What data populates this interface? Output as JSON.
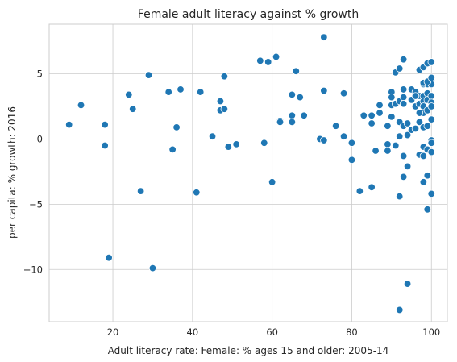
{
  "chart_data": {
    "type": "scatter",
    "title": "Female adult literacy against % growth",
    "xlabel": "Adult literacy rate: Female: % ages 15 and older: 2005-14",
    "ylabel": "per capita: % growth: 2016",
    "xlim": [
      4,
      104
    ],
    "ylim": [
      -14,
      8.8
    ],
    "xticks": [
      20,
      40,
      60,
      80,
      100
    ],
    "yticks": [
      -10,
      -5,
      0,
      5
    ],
    "grid": true,
    "marker_color": "#1f77b4",
    "marker_edge": "#ffffff",
    "grid_color": "#cccccc",
    "axes_edge_color": "#cccccc",
    "points": [
      [
        9,
        1.1
      ],
      [
        12,
        2.6
      ],
      [
        18,
        1.1
      ],
      [
        18,
        -0.5
      ],
      [
        19,
        -9.1
      ],
      [
        24,
        3.4
      ],
      [
        25,
        2.3
      ],
      [
        27,
        -4.0
      ],
      [
        29,
        4.9
      ],
      [
        30,
        -9.9
      ],
      [
        34,
        3.6
      ],
      [
        35,
        -0.8
      ],
      [
        36,
        0.9
      ],
      [
        37,
        3.8
      ],
      [
        41,
        -4.1
      ],
      [
        42,
        3.6
      ],
      [
        45,
        0.2
      ],
      [
        47,
        2.9
      ],
      [
        47,
        2.2
      ],
      [
        48,
        2.3
      ],
      [
        48,
        4.8
      ],
      [
        49,
        -0.6
      ],
      [
        51,
        -0.4
      ],
      [
        57,
        6.0
      ],
      [
        58,
        -0.3
      ],
      [
        59,
        5.9
      ],
      [
        60,
        -3.3
      ],
      [
        61,
        6.3
      ],
      [
        62,
        1.4
      ],
      [
        62,
        1.3
      ],
      [
        65,
        3.4
      ],
      [
        65,
        1.8
      ],
      [
        65,
        1.3
      ],
      [
        66,
        5.2
      ],
      [
        67,
        3.2
      ],
      [
        68,
        1.8
      ],
      [
        72,
        0.0
      ],
      [
        73,
        7.8
      ],
      [
        73,
        3.7
      ],
      [
        73,
        -0.1
      ],
      [
        76,
        1.0
      ],
      [
        78,
        3.5
      ],
      [
        78,
        0.2
      ],
      [
        80,
        -0.3
      ],
      [
        80,
        -1.6
      ],
      [
        82,
        -4.0
      ],
      [
        83,
        1.8
      ],
      [
        85,
        1.8
      ],
      [
        85,
        1.2
      ],
      [
        85,
        -3.7
      ],
      [
        86,
        -0.9
      ],
      [
        87,
        2.6
      ],
      [
        87,
        2.0
      ],
      [
        89,
        1.0
      ],
      [
        89,
        -0.4
      ],
      [
        89,
        -0.9
      ],
      [
        90,
        3.6
      ],
      [
        90,
        3.2
      ],
      [
        90,
        2.6
      ],
      [
        90,
        1.7
      ],
      [
        91,
        5.1
      ],
      [
        91,
        -0.5
      ],
      [
        91,
        2.7
      ],
      [
        92,
        5.4
      ],
      [
        92,
        2.9
      ],
      [
        92,
        1.3
      ],
      [
        92,
        0.2
      ],
      [
        92,
        -4.4
      ],
      [
        92,
        -13.1
      ],
      [
        93,
        6.1
      ],
      [
        93,
        3.8
      ],
      [
        93,
        3.2
      ],
      [
        93,
        2.7
      ],
      [
        93,
        1.0
      ],
      [
        93,
        -1.3
      ],
      [
        93,
        -2.9
      ],
      [
        94,
        -2.1
      ],
      [
        94,
        -11.1
      ],
      [
        94,
        1.2
      ],
      [
        94,
        0.3
      ],
      [
        95,
        3.8
      ],
      [
        95,
        3.0
      ],
      [
        95,
        0.7
      ],
      [
        96,
        3.6
      ],
      [
        96,
        2.5
      ],
      [
        96,
        0.8
      ],
      [
        97,
        5.3
      ],
      [
        97,
        3.3
      ],
      [
        97,
        2.7
      ],
      [
        97,
        1.3
      ],
      [
        97,
        -1.2
      ],
      [
        98,
        5.5
      ],
      [
        98,
        4.2
      ],
      [
        98,
        3.3
      ],
      [
        98,
        2.9
      ],
      [
        98,
        2.5
      ],
      [
        98,
        2.0
      ],
      [
        98,
        0.9
      ],
      [
        98,
        -0.6
      ],
      [
        98,
        -1.3
      ],
      [
        98,
        -3.3
      ],
      [
        99,
        5.8
      ],
      [
        99,
        4.2
      ],
      [
        99,
        3.5
      ],
      [
        99,
        3.0
      ],
      [
        99,
        2.2
      ],
      [
        99,
        1.0
      ],
      [
        99,
        -0.8
      ],
      [
        99,
        -2.8
      ],
      [
        99,
        -5.4
      ],
      [
        100,
        5.9
      ],
      [
        100,
        4.5
      ],
      [
        100,
        4.2
      ],
      [
        100,
        3.3
      ],
      [
        100,
        2.8
      ],
      [
        100,
        2.5
      ],
      [
        100,
        1.5
      ],
      [
        100,
        -0.1
      ],
      [
        100,
        -0.3
      ],
      [
        100,
        -1.0
      ],
      [
        100,
        -4.2
      ],
      [
        96,
        3.3
      ],
      [
        97,
        2.0
      ],
      [
        98,
        4.3
      ],
      [
        99,
        4.4
      ],
      [
        100,
        4.7
      ]
    ]
  }
}
